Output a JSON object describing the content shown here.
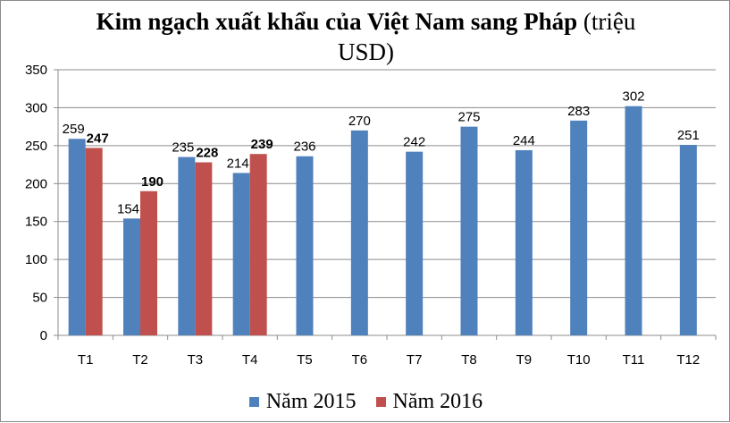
{
  "chart_data": {
    "type": "bar",
    "title_main": "Kim ngạch xuất khẩu của Việt Nam sang Pháp",
    "title_unit": "(triệu",
    "title_unit2": "USD)",
    "categories": [
      "T1",
      "T2",
      "T3",
      "T4",
      "T5",
      "T6",
      "T7",
      "T8",
      "T9",
      "T10",
      "T11",
      "T12"
    ],
    "series": [
      {
        "name": "Năm 2015",
        "color": "#4f81bd",
        "values": [
          259,
          154,
          235,
          214,
          236,
          270,
          242,
          275,
          244,
          283,
          302,
          251
        ]
      },
      {
        "name": "Năm 2016",
        "color": "#c0504d",
        "values": [
          247,
          190,
          228,
          239,
          null,
          null,
          null,
          null,
          null,
          null,
          null,
          null
        ]
      }
    ],
    "ylim": [
      0,
      350
    ],
    "yticks": [
      0,
      50,
      100,
      150,
      200,
      250,
      300,
      350
    ],
    "grid": true,
    "legend": "bottom"
  }
}
